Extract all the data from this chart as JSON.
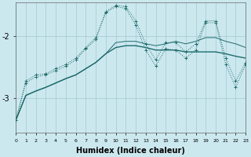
{
  "bg_color": "#cce8ef",
  "grid_color": "#aacdd6",
  "line_color": "#1e6b6b",
  "xlabel": "Humidex (Indice chaleur)",
  "x_values": [
    0,
    1,
    2,
    3,
    4,
    5,
    6,
    7,
    8,
    9,
    10,
    11,
    12,
    13,
    14,
    15,
    16,
    17,
    18,
    19,
    20,
    21,
    22,
    23
  ],
  "line1_dotted": [
    -3.35,
    -2.75,
    -2.65,
    -2.62,
    -2.55,
    -2.48,
    -2.38,
    -2.2,
    -2.05,
    -1.62,
    -1.52,
    -1.55,
    -1.82,
    -2.22,
    -2.48,
    -2.2,
    -2.22,
    -2.35,
    -2.22,
    -1.78,
    -1.78,
    -2.45,
    -2.82,
    -2.45
  ],
  "line2_dotted": [
    -3.35,
    -2.72,
    -2.62,
    -2.6,
    -2.52,
    -2.45,
    -2.35,
    -2.18,
    -2.02,
    -1.6,
    -1.5,
    -1.52,
    -1.75,
    -2.12,
    -2.38,
    -2.1,
    -2.1,
    -2.25,
    -2.12,
    -1.75,
    -1.75,
    -2.35,
    -2.72,
    -2.42
  ],
  "line3_solid": [
    -3.35,
    -2.95,
    -2.88,
    -2.82,
    -2.75,
    -2.68,
    -2.62,
    -2.52,
    -2.42,
    -2.28,
    -2.18,
    -2.15,
    -2.15,
    -2.18,
    -2.22,
    -2.22,
    -2.22,
    -2.25,
    -2.25,
    -2.25,
    -2.25,
    -2.28,
    -2.32,
    -2.35
  ],
  "line4_solid": [
    -3.35,
    -2.95,
    -2.88,
    -2.82,
    -2.75,
    -2.68,
    -2.62,
    -2.52,
    -2.42,
    -2.28,
    -2.1,
    -2.08,
    -2.08,
    -2.12,
    -2.15,
    -2.12,
    -2.08,
    -2.12,
    -2.08,
    -2.02,
    -2.02,
    -2.08,
    -2.12,
    -2.18
  ],
  "ylim": [
    -3.55,
    -1.45
  ],
  "yticks": [
    -3,
    -2
  ],
  "xlim": [
    0,
    23
  ]
}
